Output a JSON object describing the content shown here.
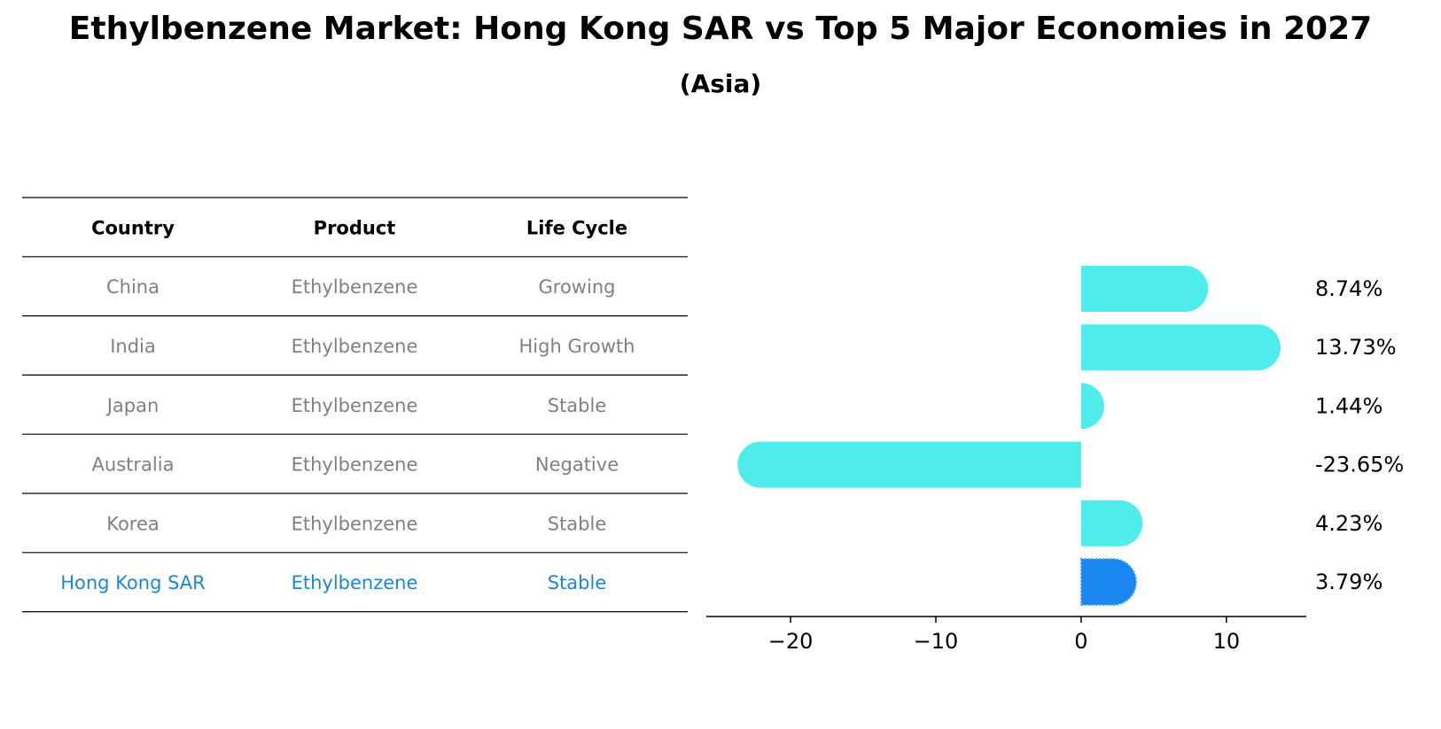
{
  "title": "Ethylbenzene Market: Hong Kong SAR vs Top 5 Major Economies in 2027",
  "subtitle": "(Asia)",
  "colors": {
    "bar": "#4eecea",
    "highlight_bar": "#1a86f0",
    "highlight_text": "#1a86d8",
    "muted_text": "#808080",
    "rule": "#000000"
  },
  "table": {
    "headers": [
      "Country",
      "Product",
      "Life Cycle"
    ],
    "rows": [
      {
        "country": "China",
        "product": "Ethylbenzene",
        "life_cycle": "Growing",
        "highlight": false
      },
      {
        "country": "India",
        "product": "Ethylbenzene",
        "life_cycle": "High Growth",
        "highlight": false
      },
      {
        "country": "Japan",
        "product": "Ethylbenzene",
        "life_cycle": "Stable",
        "highlight": false
      },
      {
        "country": "Australia",
        "product": "Ethylbenzene",
        "life_cycle": "Negative",
        "highlight": false
      },
      {
        "country": "Korea",
        "product": "Ethylbenzene",
        "life_cycle": "Stable",
        "highlight": false
      },
      {
        "country": "Hong Kong SAR",
        "product": "Ethylbenzene",
        "life_cycle": "Stable",
        "highlight": true
      }
    ]
  },
  "chart_data": {
    "type": "bar",
    "orientation": "horizontal",
    "categories": [
      "China",
      "India",
      "Japan",
      "Australia",
      "Korea",
      "Hong Kong SAR"
    ],
    "values": [
      8.74,
      13.73,
      1.44,
      -23.65,
      4.23,
      3.79
    ],
    "value_labels": [
      "8.74%",
      "13.73%",
      "1.44%",
      "-23.65%",
      "4.23%",
      "3.79%"
    ],
    "highlight_index": 5,
    "xlim": [
      -25.8,
      15.5
    ],
    "xticks": [
      -20,
      -10,
      0,
      10
    ],
    "xtick_labels": [
      "−20",
      "−10",
      "0",
      "10"
    ],
    "xlabel": "",
    "ylabel": "",
    "grid": false
  }
}
